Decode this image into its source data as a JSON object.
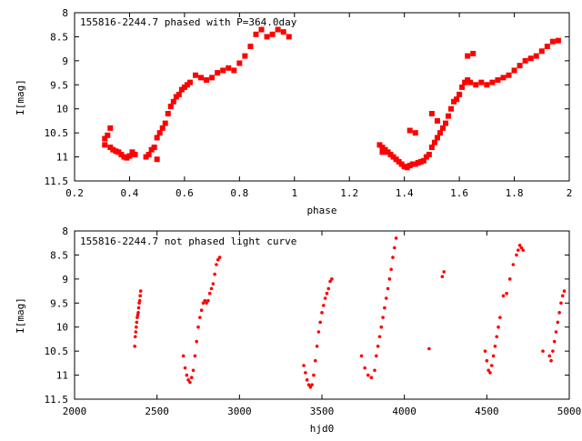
{
  "colors": {
    "points": "#ff0000",
    "axes": "#000000",
    "background": "#ffffff"
  },
  "chart_data": [
    {
      "type": "scatter",
      "title": "155816-2244.7 phased with P=364.0day",
      "xlabel": "phase",
      "ylabel": "I[mag]",
      "xlim": [
        0.2,
        2.0
      ],
      "ylim": [
        8,
        11.5
      ],
      "y_inverted": true,
      "marker": "filled-square",
      "grid": false,
      "xticks": [
        "0.2",
        "0.4",
        "0.6",
        "0.8",
        "1",
        "1.2",
        "1.4",
        "1.6",
        "1.8",
        "2"
      ],
      "yticks": [
        "8",
        "8.5",
        "9",
        "9.5",
        "10",
        "10.5",
        "11",
        "11.5"
      ],
      "series": [
        {
          "x": [
            0.31,
            0.32,
            0.33,
            0.34,
            0.35,
            0.36,
            0.37,
            0.38,
            0.39,
            0.4,
            0.41,
            0.42,
            0.46,
            0.47,
            0.48,
            0.49,
            0.5,
            0.51,
            0.52,
            0.53,
            0.54,
            0.55,
            0.56,
            0.57,
            0.58,
            0.59,
            0.6,
            0.61,
            0.62,
            0.64,
            0.66,
            0.68,
            0.7,
            0.72,
            0.74,
            0.76,
            0.78,
            0.8,
            0.82,
            0.84,
            0.86,
            0.88,
            0.9,
            0.92,
            0.94,
            0.96,
            0.98,
            0.5,
            0.33,
            0.31,
            1.31,
            1.32,
            1.33,
            1.34,
            1.35,
            1.36,
            1.37,
            1.38,
            1.39,
            1.4,
            1.41,
            1.42,
            1.43,
            1.44,
            1.45,
            1.46,
            1.47,
            1.48,
            1.49,
            1.5,
            1.51,
            1.52,
            1.53,
            1.54,
            1.55,
            1.56,
            1.57,
            1.58,
            1.59,
            1.6,
            1.61,
            1.62,
            1.63,
            1.64,
            1.66,
            1.68,
            1.7,
            1.72,
            1.74,
            1.76,
            1.78,
            1.8,
            1.82,
            1.84,
            1.86,
            1.88,
            1.9,
            1.92,
            1.94,
            1.96,
            1.63,
            1.65,
            1.32,
            1.42,
            1.44,
            1.5,
            1.52
          ],
          "y": [
            10.62,
            10.55,
            10.8,
            10.85,
            10.88,
            10.9,
            10.95,
            11.0,
            11.02,
            10.98,
            10.9,
            10.95,
            11.0,
            10.95,
            10.85,
            10.8,
            10.6,
            10.5,
            10.4,
            10.3,
            10.1,
            9.95,
            9.85,
            9.75,
            9.7,
            9.6,
            9.55,
            9.5,
            9.45,
            9.3,
            9.35,
            9.4,
            9.35,
            9.25,
            9.2,
            9.15,
            9.2,
            9.05,
            8.9,
            8.7,
            8.45,
            8.35,
            8.5,
            8.45,
            8.35,
            8.4,
            8.5,
            11.05,
            10.4,
            10.75,
            10.75,
            10.8,
            10.85,
            10.9,
            10.95,
            11.0,
            11.05,
            11.1,
            11.15,
            11.2,
            11.22,
            11.18,
            11.15,
            11.15,
            11.12,
            11.1,
            11.08,
            11.0,
            10.95,
            10.8,
            10.7,
            10.6,
            10.5,
            10.4,
            10.3,
            10.15,
            10.0,
            9.85,
            9.8,
            9.7,
            9.55,
            9.45,
            9.4,
            9.45,
            9.5,
            9.45,
            9.5,
            9.45,
            9.4,
            9.35,
            9.3,
            9.2,
            9.1,
            9.0,
            8.95,
            8.9,
            8.8,
            8.7,
            8.6,
            8.58,
            8.9,
            8.85,
            10.9,
            10.45,
            10.5,
            10.1,
            10.25
          ]
        }
      ]
    },
    {
      "type": "scatter",
      "title": "155816-2244.7 not phased light curve",
      "xlabel": "hjd0",
      "ylabel": "I[mag]",
      "xlim": [
        2000,
        5000
      ],
      "ylim": [
        8,
        11.5
      ],
      "y_inverted": true,
      "marker": "small-dot",
      "grid": false,
      "xticks": [
        "2000",
        "2500",
        "3000",
        "3500",
        "4000",
        "4500",
        "5000"
      ],
      "yticks": [
        "8",
        "8.5",
        "9",
        "9.5",
        "10",
        "10.5",
        "11",
        "11.5"
      ],
      "series": [
        {
          "x": [
            2365,
            2368,
            2371,
            2374,
            2377,
            2380,
            2383,
            2386,
            2389,
            2392,
            2395,
            2398,
            2401,
            2660,
            2670,
            2680,
            2690,
            2700,
            2710,
            2720,
            2730,
            2740,
            2750,
            2760,
            2770,
            2780,
            2790,
            2800,
            2810,
            2820,
            2830,
            2840,
            2850,
            2860,
            2870,
            2880,
            3390,
            3400,
            3410,
            3420,
            3430,
            3440,
            3450,
            3460,
            3470,
            3480,
            3490,
            3500,
            3510,
            3520,
            3530,
            3540,
            3550,
            3560,
            3740,
            3760,
            3780,
            3800,
            3820,
            3830,
            3840,
            3850,
            3860,
            3870,
            3880,
            3890,
            3900,
            3910,
            3920,
            3930,
            3940,
            3950,
            4150,
            4230,
            4240,
            4490,
            4500,
            4510,
            4520,
            4530,
            4540,
            4550,
            4560,
            4570,
            4580,
            4600,
            4620,
            4640,
            4660,
            4680,
            4690,
            4700,
            4710,
            4720,
            4840,
            4880,
            4890,
            4900,
            4910,
            4920,
            4930,
            4940,
            4950,
            4960,
            4970
          ],
          "y": [
            10.4,
            10.2,
            10.1,
            10.0,
            9.9,
            9.8,
            9.75,
            9.7,
            9.6,
            9.5,
            9.45,
            9.35,
            9.25,
            10.6,
            10.85,
            11.0,
            11.1,
            11.15,
            11.05,
            10.9,
            10.6,
            10.3,
            10.0,
            9.8,
            9.65,
            9.5,
            9.45,
            9.5,
            9.45,
            9.3,
            9.2,
            9.1,
            8.9,
            8.7,
            8.6,
            8.55,
            10.8,
            10.95,
            11.1,
            11.2,
            11.25,
            11.2,
            11.0,
            10.7,
            10.4,
            10.1,
            9.9,
            9.7,
            9.55,
            9.4,
            9.3,
            9.2,
            9.05,
            9.0,
            10.6,
            10.85,
            11.0,
            11.05,
            10.9,
            10.6,
            10.4,
            10.2,
            10.0,
            9.8,
            9.6,
            9.4,
            9.2,
            9.0,
            8.8,
            8.55,
            8.35,
            8.15,
            10.45,
            8.95,
            8.85,
            10.5,
            10.7,
            10.9,
            10.95,
            10.8,
            10.6,
            10.4,
            10.2,
            10.0,
            9.8,
            9.35,
            9.3,
            9.0,
            8.7,
            8.5,
            8.4,
            8.3,
            8.35,
            8.4,
            10.5,
            10.6,
            10.7,
            10.5,
            10.3,
            10.1,
            9.9,
            9.7,
            9.5,
            9.35,
            9.25
          ]
        }
      ]
    }
  ]
}
